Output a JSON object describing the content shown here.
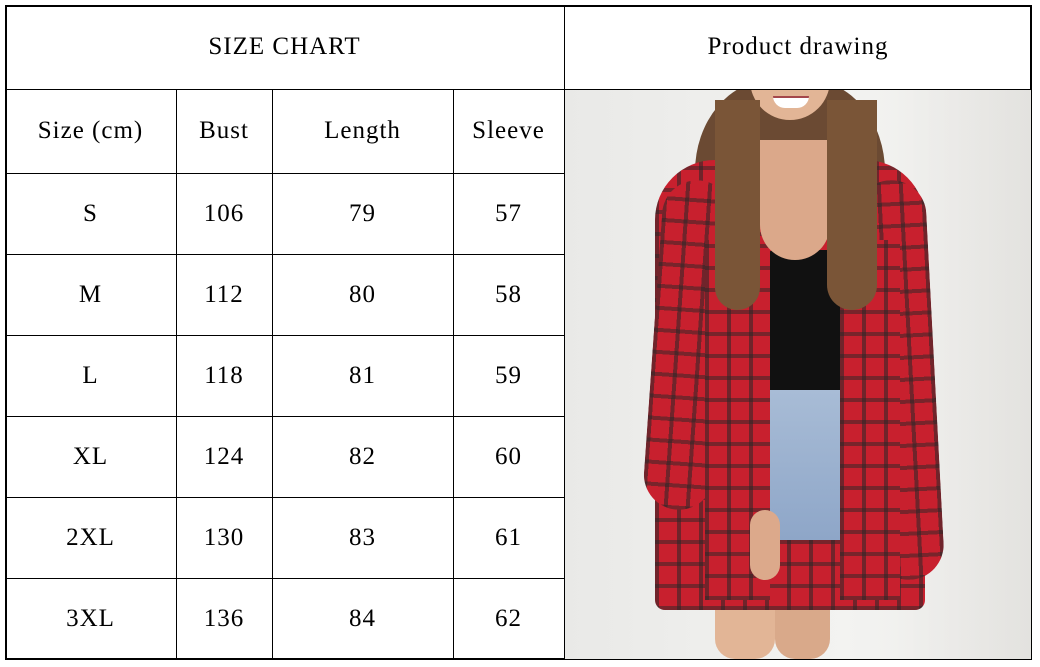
{
  "size_chart": {
    "title": "SIZE CHART",
    "headers": [
      "Size (cm)",
      "Bust",
      "Length",
      "Sleeve"
    ],
    "rows": [
      [
        "S",
        "106",
        "79",
        "57"
      ],
      [
        "M",
        "112",
        "80",
        "58"
      ],
      [
        "L",
        "118",
        "81",
        "59"
      ],
      [
        "XL",
        "124",
        "82",
        "60"
      ],
      [
        "2XL",
        "130",
        "83",
        "61"
      ],
      [
        "3XL",
        "136",
        "84",
        "62"
      ]
    ]
  },
  "product": {
    "title": "Product drawing",
    "image": "woman wearing red plaid oversized shirt with black top and denim shorts"
  }
}
